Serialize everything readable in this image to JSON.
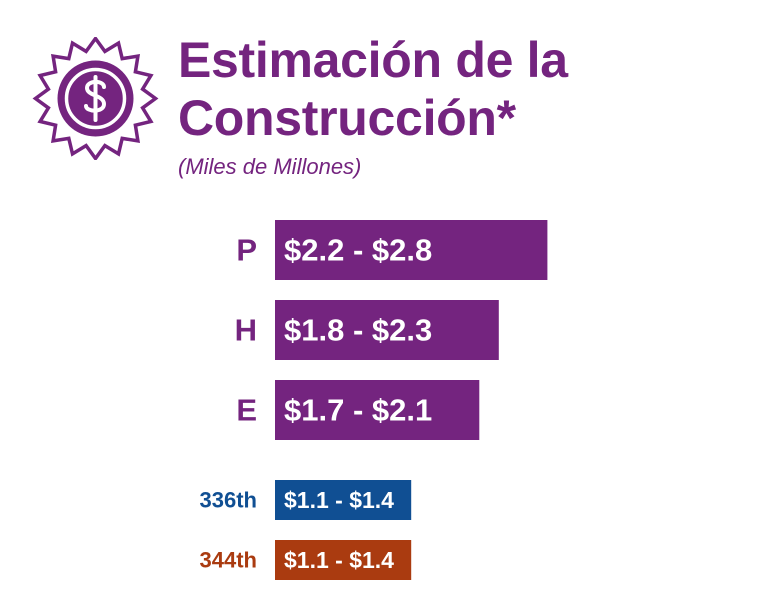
{
  "header": {
    "title_line1": "Estimación de la",
    "title_line2": "Construcción*",
    "subtitle": "(Miles de Millones)"
  },
  "icon": "dollar-seal-icon",
  "colors": {
    "purple": "#74247f",
    "blue": "#104f93",
    "orange": "#aa3b10",
    "text_on_bar": "#ffffff"
  },
  "chart_data": {
    "type": "bar",
    "orientation": "horizontal",
    "title": "Estimación de la Construcción*",
    "subtitle": "(Miles de Millones)",
    "xlim": [
      0,
      3
    ],
    "grid": false,
    "legend": "none",
    "categories": [
      "P",
      "H",
      "E",
      "336th",
      "344th"
    ],
    "bars": [
      {
        "category": "P",
        "low": 2.2,
        "high": 2.8,
        "label": "$2.2 - $2.8",
        "color": "#74247f",
        "group": "main"
      },
      {
        "category": "H",
        "low": 1.8,
        "high": 2.3,
        "label": "$1.8 - $2.3",
        "color": "#74247f",
        "group": "main"
      },
      {
        "category": "E",
        "low": 1.7,
        "high": 2.1,
        "label": "$1.7 - $2.1",
        "color": "#74247f",
        "group": "main"
      },
      {
        "category": "336th",
        "low": 1.1,
        "high": 1.4,
        "label": "$1.1 - $1.4",
        "color": "#104f93",
        "group": "station"
      },
      {
        "category": "344th",
        "low": 1.1,
        "high": 1.4,
        "label": "$1.1 - $1.4",
        "color": "#aa3b10",
        "group": "station"
      }
    ]
  }
}
